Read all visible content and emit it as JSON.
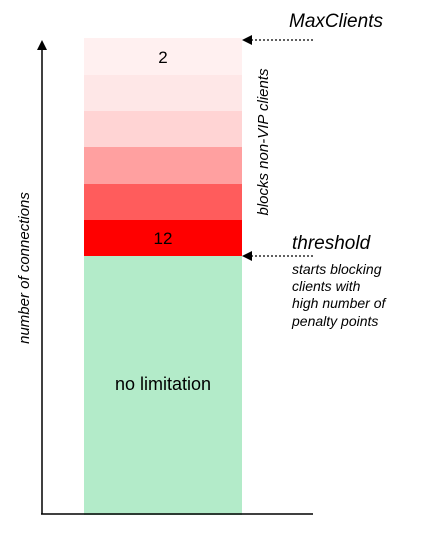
{
  "axis": {
    "label": "number of connections"
  },
  "bar": {
    "top_value": "2",
    "threshold_value": "12",
    "base_label": "no limitation",
    "side_label": "blocks non-VIP clients",
    "band_colors": [
      "#fff0f0",
      "#fee7e7",
      "#ffd4d4",
      "#ffa0a0",
      "#ff5c5c",
      "#ff0000"
    ],
    "base_color": "#b3ebc9"
  },
  "annotations": {
    "max_clients": "MaxClients",
    "threshold": "threshold",
    "threshold_note": [
      "starts blocking",
      "clients with",
      "high number of",
      "penalty points"
    ]
  }
}
